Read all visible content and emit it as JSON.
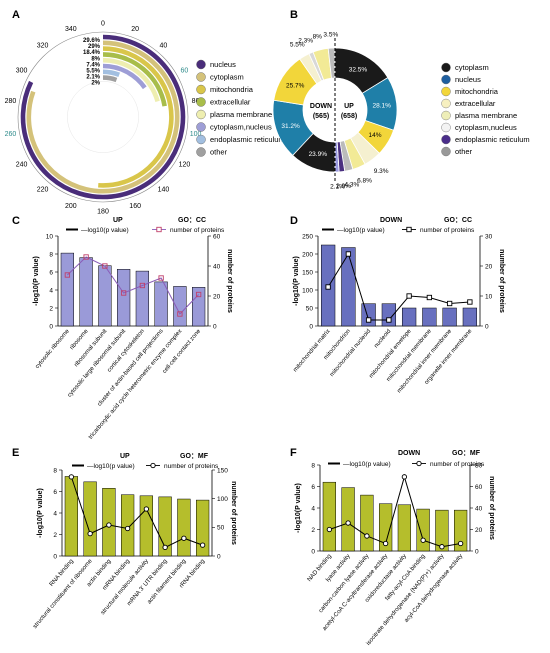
{
  "panel_letters": [
    "A",
    "B",
    "C",
    "D",
    "E",
    "F"
  ],
  "chart_data": [
    {
      "id": "A",
      "type": "radial-bar",
      "ticks": [
        0,
        20,
        40,
        60,
        80,
        100,
        120,
        140,
        160,
        180,
        200,
        220,
        240,
        260,
        280,
        300,
        320,
        340
      ],
      "ticks_colored": [
        60,
        100,
        260
      ],
      "tick_accent_color": "#2e8b8b",
      "range": [
        0,
        360
      ],
      "categories": [
        "nucleus",
        "cytoplasm",
        "mitochondria",
        "extracellular",
        "plasma membrane",
        "cytoplasm,nucleus",
        "endoplasmic reticulum",
        "other"
      ],
      "values": [
        29.6,
        29,
        18.4,
        8,
        7.4,
        5.5,
        2.1,
        2
      ],
      "value_labels": [
        "29.6%",
        "29%",
        "18.4%",
        "8%",
        "7.4%",
        "5.5%",
        "2.1%",
        "2%"
      ],
      "colors": [
        "#4a2d7a",
        "#d4c27a",
        "#d9c64a",
        "#a8bd4a",
        "#eeeeb0",
        "#9e9ed6",
        "#a2bfe0",
        "#a0a0a0"
      ],
      "legend_position": "right"
    },
    {
      "id": "B",
      "type": "split-donut",
      "down": {
        "label": "DOWN",
        "count": "(565)",
        "values": [
          23.9,
          31.2,
          25.7,
          5.5,
          2.3,
          8,
          3.5
        ],
        "colors": [
          "#1a1a1a",
          "#1f7fa8",
          "#f2d63a",
          "#f5f0d0",
          "#d8d8d8",
          "#f2ea96",
          "#bbbbbb"
        ],
        "labels": [
          "23.9%",
          "31.2%",
          "25.7%",
          "5.5%",
          "2.3%",
          "8%",
          "3.5%"
        ]
      },
      "up": {
        "label": "UP",
        "count": "(658)",
        "values": [
          32.5,
          28.1,
          14,
          9.3,
          6.8,
          4.3,
          2.9,
          2.1
        ],
        "colors": [
          "#1a1a1a",
          "#1f7fa8",
          "#f2d63a",
          "#f5f0d0",
          "#f2ea96",
          "#bbbbbb",
          "#4a3080",
          "#9a9ae0"
        ],
        "labels": [
          "32.5%",
          "28.1%",
          "14%",
          "9.3%",
          "6.8%",
          "4.3%",
          "2.9%",
          "2.1%"
        ]
      },
      "legend": [
        {
          "label": "cytoplasm",
          "color": "#1a1a1a"
        },
        {
          "label": "nucleus",
          "color": "#1f5fa0"
        },
        {
          "label": "mitochondria",
          "color": "#f2d63a"
        },
        {
          "label": "extracellular",
          "color": "#f7f0c0"
        },
        {
          "label": "plasma membrane",
          "color": "#eeeeb8"
        },
        {
          "label": "cytoplasm,nucleus",
          "color": "#f3f3f3"
        },
        {
          "label": "endoplasmic reticulum",
          "color": "#4a2d8a"
        },
        {
          "label": "other",
          "color": "#999999"
        }
      ]
    },
    {
      "id": "C",
      "type": "bar+line",
      "title_left": "UP",
      "title_right": "GO：CC",
      "legend": [
        "—log10(p value)",
        "number of proteins"
      ],
      "ylabel_left": "-log10(P value)",
      "ylabel_right": "number of proteins",
      "ylim_left": [
        0,
        10
      ],
      "yticks_left": [
        0,
        2,
        4,
        6,
        8,
        10
      ],
      "ylim_right": [
        0,
        60
      ],
      "yticks_right": [
        0,
        20,
        40,
        60
      ],
      "categories": [
        "cytosolic ribosome",
        "ribosome",
        "ribosomal subunit",
        "cytosolic large ribosomal subunit",
        "cortical cytoskeleton",
        "cluster of actin-based cell projections",
        "tricarboxylic acid cycle heterometric enzyme complex",
        "cell-cell contact zone"
      ],
      "bar_values": [
        8.1,
        7.6,
        6.7,
        6.3,
        6.1,
        4.9,
        4.4,
        4.3
      ],
      "line_values": [
        34,
        46,
        40,
        22,
        27,
        32,
        8,
        21
      ],
      "bar_color": "#9a9ad8",
      "line_color": "#8a5cb8",
      "marker_color": "#c0406a",
      "marker": "square"
    },
    {
      "id": "D",
      "type": "bar+line",
      "title_left": "DOWN",
      "title_right": "GO：CC",
      "legend": [
        "—log10(p value)",
        "number of proteins"
      ],
      "ylabel_left": "-log10(P value)",
      "ylabel_right": "number of proteins",
      "ylim_left": [
        0,
        250
      ],
      "yticks_left": [
        0,
        50,
        100,
        150,
        200,
        250
      ],
      "ylim_right": [
        0,
        30
      ],
      "yticks_right": [
        0,
        10,
        20,
        30
      ],
      "categories": [
        "mitochondrial matrix",
        "mitochondrion",
        "mitochondrial nucleoid",
        "nucleoid",
        "mitochondrial envelope",
        "mitochondrial membrane",
        "mitochondrial inner membrane",
        "organelle inner membrane"
      ],
      "bar_values": [
        225,
        218,
        62,
        62,
        50,
        50,
        50,
        50
      ],
      "line_values": [
        13,
        24,
        2,
        2,
        10,
        9.5,
        7.5,
        8
      ],
      "bar_color": "#6870bf",
      "line_color": "#000000",
      "marker_color": "#000000",
      "marker": "square-open"
    },
    {
      "id": "E",
      "type": "bar+line",
      "title_left": "UP",
      "title_right": "GO：MF",
      "legend": [
        "—log10(p value)",
        "number of proteins"
      ],
      "ylabel_left": "-log10(P value)",
      "ylabel_right": "number of proteins",
      "ylim_left": [
        0,
        8
      ],
      "yticks_left": [
        0,
        2,
        4,
        6,
        8
      ],
      "ylim_right": [
        0,
        150
      ],
      "yticks_right": [
        0,
        50,
        100,
        150
      ],
      "categories": [
        "RNA binding",
        "structural constituent of ribosome",
        "actin binding",
        "mRNA binding",
        "structural molecule activity",
        "mRNA 3' UTR binding",
        "actin filament binding",
        "rRNA binding"
      ],
      "bar_values": [
        7.4,
        6.9,
        6.3,
        5.7,
        5.6,
        5.5,
        5.3,
        5.2
      ],
      "line_values": [
        138,
        39,
        54,
        48,
        82,
        15,
        31,
        19
      ],
      "bar_color": "#b5be2c",
      "line_color": "#000000",
      "marker_color": "#000000",
      "marker": "circle-open"
    },
    {
      "id": "F",
      "type": "bar+line",
      "title_left": "DOWN",
      "title_right": "GO：MF",
      "legend": [
        "—log10(p value)",
        "number of proteins"
      ],
      "ylabel_left": "-log10(P value)",
      "ylabel_right": "number of proteins",
      "ylim_left": [
        0,
        8
      ],
      "yticks_left": [
        0,
        2,
        4,
        6,
        8
      ],
      "ylim_right": [
        0,
        80
      ],
      "yticks_right": [
        0,
        20,
        40,
        60,
        80
      ],
      "categories": [
        "NAD binding",
        "lyase activity",
        "carbon-carbon lyase activity",
        "acetyl-CoA C-acyltransferase activity",
        "oxidoreductase activity",
        "fatty-acyl-CoA binding",
        "isocitrate dehydrogenase (NAD(P)+) activity",
        "acyl-CoA dehydrogenase activity"
      ],
      "bar_values": [
        6.4,
        5.9,
        5.2,
        4.4,
        4.3,
        3.9,
        3.8,
        3.8
      ],
      "line_values": [
        20,
        26,
        14,
        7,
        69,
        10,
        4,
        7
      ],
      "bar_color": "#b5be2c",
      "line_color": "#000000",
      "marker_color": "#000000",
      "marker": "circle-open"
    }
  ]
}
